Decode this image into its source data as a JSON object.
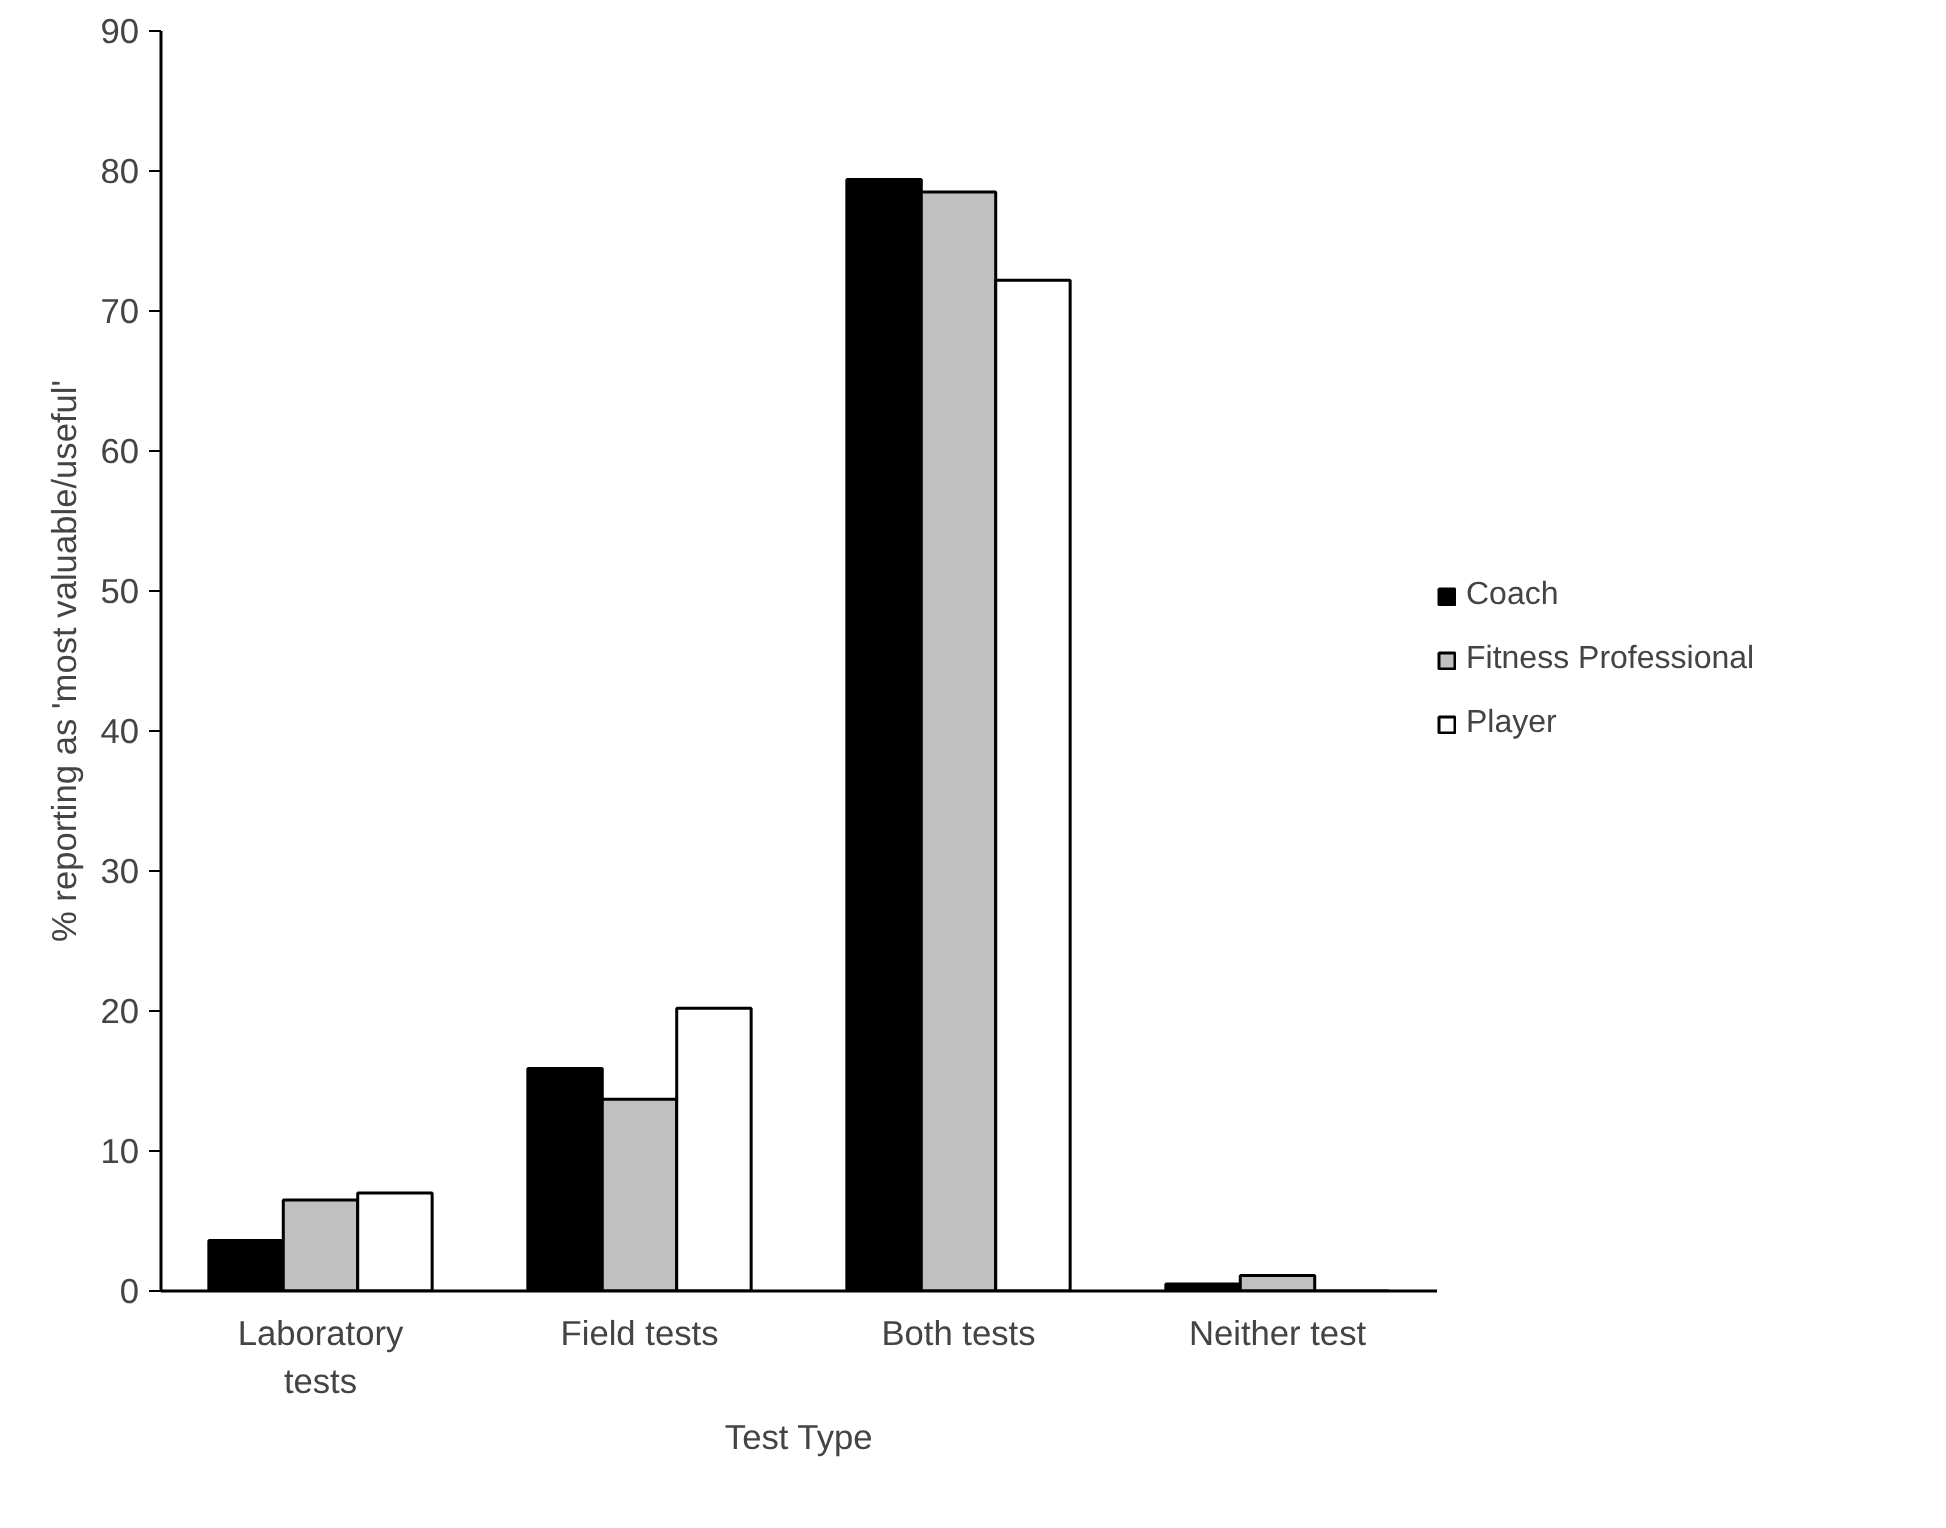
{
  "chart_data": {
    "type": "bar",
    "xlabel": "Test Type",
    "ylabel": "% reporting as 'most valuable/useful'",
    "categories": [
      "Laboratory tests",
      "Field tests",
      "Both tests",
      "Neither test"
    ],
    "series": [
      {
        "name": "Coach",
        "color": "#000000",
        "values": [
          3.6,
          15.9,
          79.4,
          0.5
        ]
      },
      {
        "name": "Fitness Professional",
        "color": "#c0c0c0",
        "values": [
          6.5,
          13.7,
          78.5,
          1.1
        ]
      },
      {
        "name": "Player",
        "color": "#ffffff",
        "values": [
          7.0,
          20.2,
          72.2,
          0
        ]
      }
    ],
    "ylim": [
      0,
      90
    ],
    "yticks": [
      0,
      10,
      20,
      30,
      40,
      50,
      60,
      70,
      80,
      90
    ],
    "grid": false,
    "legend": "right"
  }
}
